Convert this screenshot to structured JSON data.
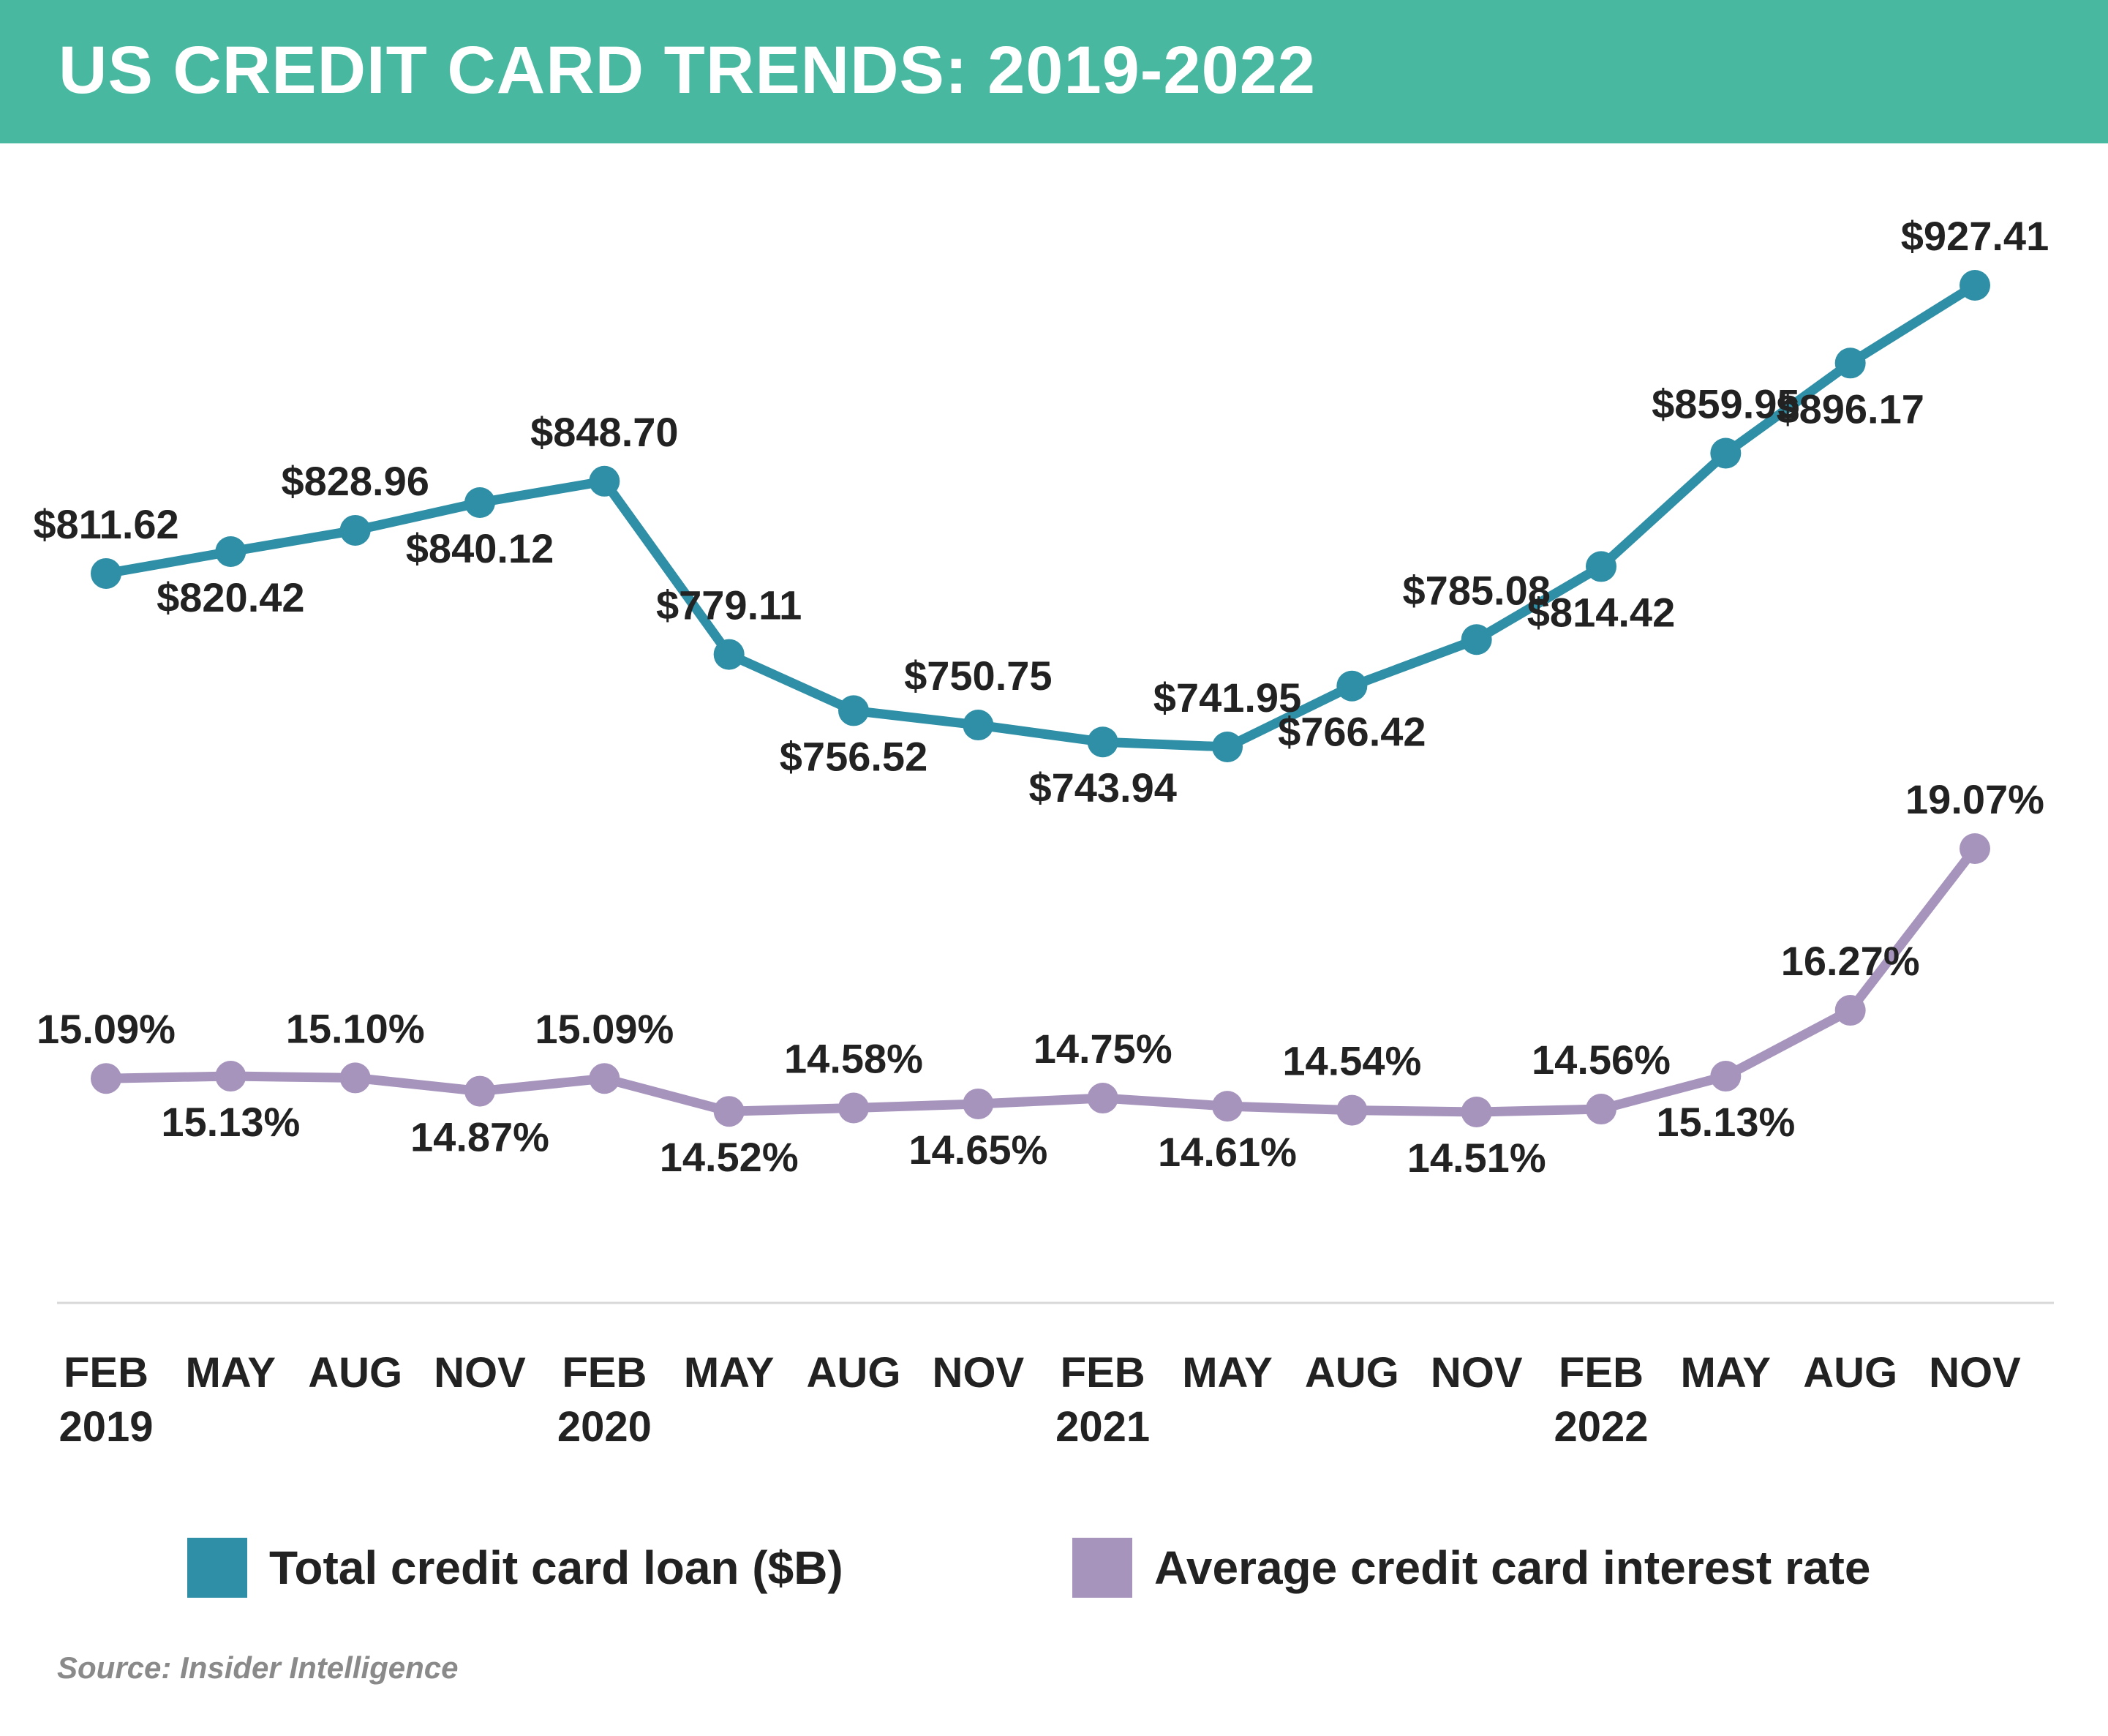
{
  "title": "US CREDIT CARD TRENDS: 2019-2022",
  "source": "Source: Insider Intelligence",
  "colors": {
    "header": "#48b9a0",
    "loan": "#2e8fa6",
    "rate": "#a694bd",
    "text": "#222222",
    "source": "#8a8a8a"
  },
  "chart_data": {
    "type": "line",
    "categories": [
      [
        "FEB",
        "2019"
      ],
      [
        "MAY",
        ""
      ],
      [
        "AUG",
        ""
      ],
      [
        "NOV",
        ""
      ],
      [
        "FEB",
        "2020"
      ],
      [
        "MAY",
        ""
      ],
      [
        "AUG",
        ""
      ],
      [
        "NOV",
        ""
      ],
      [
        "FEB",
        "2021"
      ],
      [
        "MAY",
        ""
      ],
      [
        "AUG",
        ""
      ],
      [
        "NOV",
        ""
      ],
      [
        "FEB",
        "2022"
      ],
      [
        "MAY",
        ""
      ],
      [
        "AUG",
        ""
      ],
      [
        "NOV",
        ""
      ]
    ],
    "series": [
      {
        "name": "Total credit card loan ($B)",
        "color": "#2e8fa6",
        "values": [
          811.62,
          820.42,
          828.96,
          840.12,
          848.7,
          779.11,
          756.52,
          750.75,
          743.94,
          741.95,
          766.42,
          785.08,
          814.42,
          859.95,
          896.17,
          927.41
        ],
        "labels": [
          "$811.62",
          "$820.42",
          "$828.96",
          "$840.12",
          "$848.70",
          "$779.11",
          "$756.52",
          "$750.75",
          "$743.94",
          "$741.95",
          "$766.42",
          "$785.08",
          "$814.42",
          "$859.95",
          "$896.17",
          "$927.41"
        ],
        "label_side": [
          "above",
          "below",
          "above",
          "below",
          "above",
          "above",
          "below",
          "above",
          "below",
          "above",
          "below",
          "above",
          "below",
          "above",
          "below",
          "above"
        ]
      },
      {
        "name": "Average credit card interest rate",
        "color": "#a694bd",
        "values": [
          15.09,
          15.13,
          15.1,
          14.87,
          15.09,
          14.52,
          14.58,
          14.65,
          14.75,
          14.61,
          14.54,
          14.51,
          14.56,
          15.13,
          16.27,
          19.07
        ],
        "labels": [
          "15.09%",
          "15.13%",
          "15.10%",
          "14.87%",
          "15.09%",
          "14.52%",
          "14.58%",
          "14.65%",
          "14.75%",
          "14.61%",
          "14.54%",
          "14.51%",
          "14.56%",
          "15.13%",
          "16.27%",
          "19.07%"
        ],
        "label_side": [
          "above",
          "below",
          "above",
          "below",
          "above",
          "below",
          "above",
          "below",
          "above",
          "below",
          "above",
          "below",
          "above",
          "below",
          "above",
          "above"
        ]
      }
    ],
    "legend": "bottom",
    "grid": false
  }
}
